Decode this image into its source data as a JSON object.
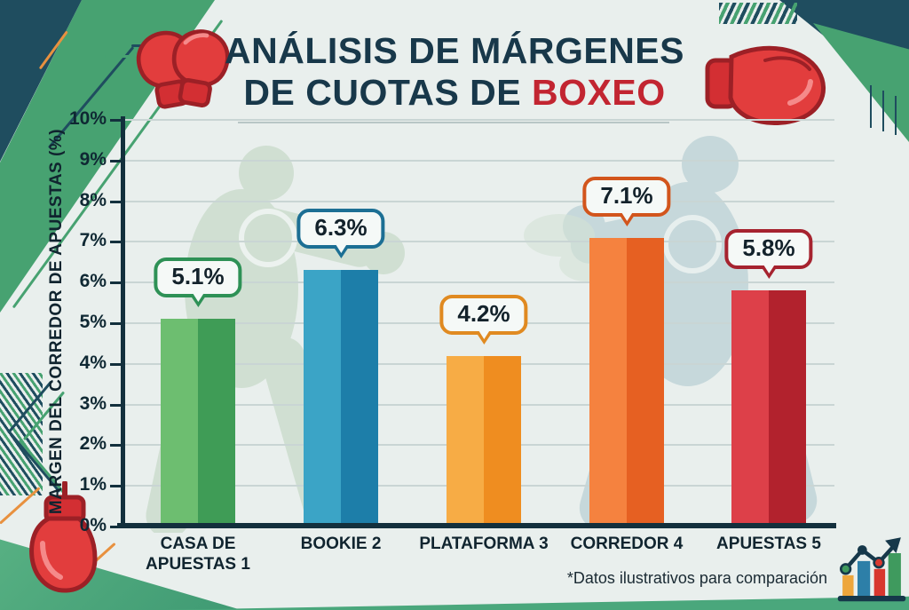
{
  "title": {
    "line1": "ANÁLISIS DE MÁRGENES",
    "line2_prefix": "DE CUOTAS DE ",
    "line2_highlight": "BOXEO",
    "color": "#18384a",
    "highlight_color": "#c22531"
  },
  "y_axis": {
    "label": "MARGEN DEL CORREDOR DE APUESTAS (%)",
    "ticks": [
      "0%",
      "1%",
      "2%",
      "3%",
      "4%",
      "5%",
      "6%",
      "7%",
      "8%",
      "9%",
      "10%"
    ]
  },
  "footnote": "*Datos ilustrativos para comparación",
  "chart_data": {
    "type": "bar",
    "title": "ANÁLISIS DE MÁRGENES DE CUOTAS DE BOXEO",
    "xlabel": "",
    "ylabel": "MARGEN DEL CORREDOR DE APUESTAS (%)",
    "ylim": [
      0,
      10
    ],
    "ytick_step": 1,
    "grid": true,
    "legend": false,
    "categories": [
      "CASA DE APUESTAS 1",
      "BOOKIE 2",
      "PLATAFORMA 3",
      "CORREDOR 4",
      "APUESTAS 5"
    ],
    "category_labels": [
      "CASA DE\nAPUESTAS 1",
      "BOOKIE 2",
      "PLATAFORMA 3",
      "CORREDOR 4",
      "APUESTAS 5"
    ],
    "values": [
      5.1,
      6.3,
      4.2,
      7.1,
      5.8
    ],
    "value_labels": [
      "5.1%",
      "6.3%",
      "4.2%",
      "7.1%",
      "5.8%"
    ],
    "bar_colors": [
      {
        "light": "#6dbe70",
        "dark": "#3f9c56",
        "callout_border": "#2e9156"
      },
      {
        "light": "#3ba4c6",
        "dark": "#1d7ea9",
        "callout_border": "#1c6f94"
      },
      {
        "light": "#f7ac45",
        "dark": "#ef8d20",
        "callout_border": "#e08a21"
      },
      {
        "light": "#f5823f",
        "dark": "#e66022",
        "callout_border": "#d2551c"
      },
      {
        "light": "#dd4049",
        "dark": "#b2222d",
        "callout_border": "#a6232f"
      }
    ]
  },
  "icons": {
    "top_left": "boxing-gloves-pair-icon",
    "top_right": "boxing-glove-icon",
    "bottom_left": "hanging-boxing-glove-icon",
    "bottom_right": "growth-chart-icon"
  },
  "decor_colors": {
    "navy": "#1f4d5f",
    "green": "#47a271",
    "corner_green": "#3f9a73",
    "orange": "#e8913f",
    "glove_red": "#e23d3d",
    "glove_outline": "#9c2026"
  }
}
